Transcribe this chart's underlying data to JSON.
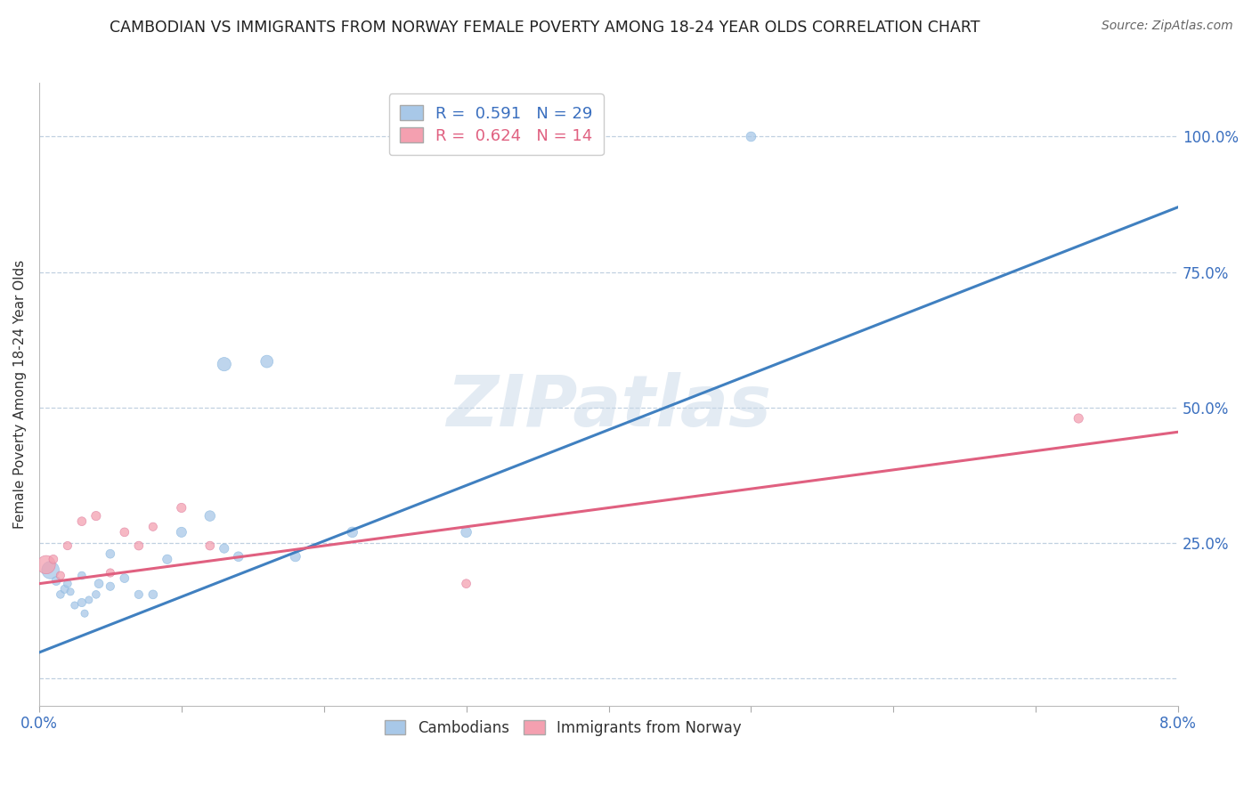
{
  "title": "CAMBODIAN VS IMMIGRANTS FROM NORWAY FEMALE POVERTY AMONG 18-24 YEAR OLDS CORRELATION CHART",
  "source": "Source: ZipAtlas.com",
  "ylabel": "Female Poverty Among 18-24 Year Olds",
  "xlim": [
    0.0,
    0.08
  ],
  "ylim": [
    -0.05,
    1.1
  ],
  "yticks": [
    0.0,
    0.25,
    0.5,
    0.75,
    1.0
  ],
  "ytick_labels": [
    "",
    "25.0%",
    "50.0%",
    "75.0%",
    "100.0%"
  ],
  "legend_R1": "0.591",
  "legend_N1": "29",
  "legend_R2": "0.624",
  "legend_N2": "14",
  "blue_color": "#a8c8e8",
  "pink_color": "#f4a0b0",
  "blue_line_color": "#4080c0",
  "pink_line_color": "#e06080",
  "watermark": "ZIPatlas",
  "cambodian_x": [
    0.0008,
    0.0012,
    0.0015,
    0.0018,
    0.002,
    0.0022,
    0.0025,
    0.003,
    0.003,
    0.0032,
    0.0035,
    0.004,
    0.0042,
    0.005,
    0.005,
    0.006,
    0.007,
    0.008,
    0.009,
    0.01,
    0.012,
    0.013,
    0.014,
    0.016,
    0.018,
    0.022,
    0.03,
    0.05,
    0.013
  ],
  "cambodian_y": [
    0.2,
    0.18,
    0.155,
    0.165,
    0.175,
    0.16,
    0.135,
    0.14,
    0.19,
    0.12,
    0.145,
    0.155,
    0.175,
    0.17,
    0.23,
    0.185,
    0.155,
    0.155,
    0.22,
    0.27,
    0.3,
    0.24,
    0.225,
    0.585,
    0.225,
    0.27,
    0.27,
    1.0,
    0.58
  ],
  "cambodian_sizes": [
    200,
    50,
    40,
    45,
    40,
    35,
    35,
    45,
    40,
    35,
    35,
    40,
    50,
    45,
    50,
    50,
    45,
    50,
    55,
    65,
    70,
    55,
    60,
    100,
    65,
    70,
    70,
    60,
    120
  ],
  "norway_x": [
    0.0005,
    0.001,
    0.0015,
    0.002,
    0.003,
    0.004,
    0.005,
    0.006,
    0.007,
    0.008,
    0.01,
    0.012,
    0.03,
    0.073
  ],
  "norway_y": [
    0.21,
    0.22,
    0.19,
    0.245,
    0.29,
    0.3,
    0.195,
    0.27,
    0.245,
    0.28,
    0.315,
    0.245,
    0.175,
    0.48
  ],
  "norway_sizes": [
    220,
    50,
    45,
    45,
    50,
    55,
    45,
    50,
    50,
    45,
    55,
    50,
    50,
    55
  ],
  "blue_trendline_x": [
    0.0,
    0.08
  ],
  "blue_trendline_y": [
    0.048,
    0.87
  ],
  "pink_trendline_x": [
    0.0,
    0.08
  ],
  "pink_trendline_y": [
    0.175,
    0.455
  ]
}
